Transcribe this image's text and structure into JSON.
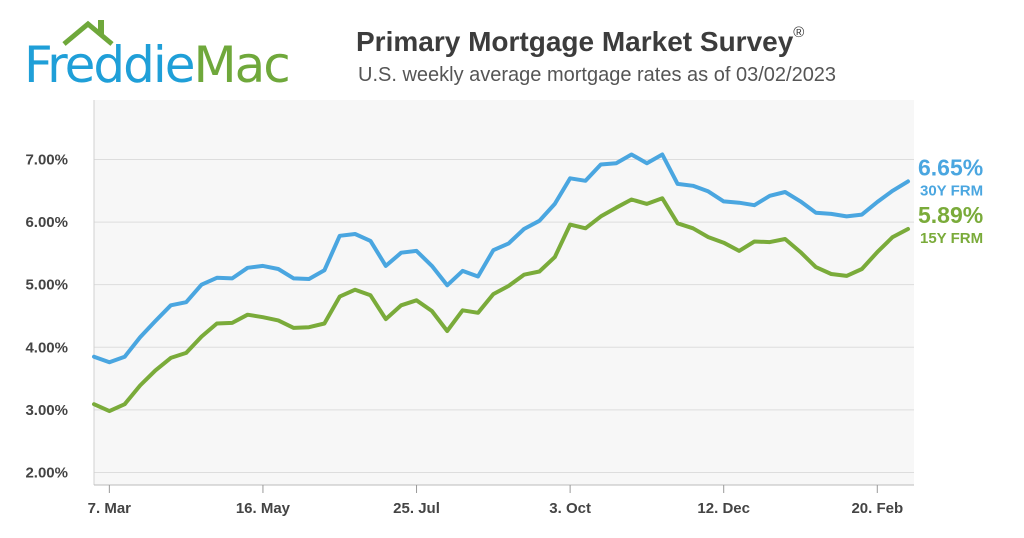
{
  "logo": {
    "text_part1": "Freddie",
    "text_part2": "Mac",
    "color_primary": "#1f9fd8",
    "color_secondary": "#6fa83b"
  },
  "header": {
    "title": "Primary Mortgage Market Survey",
    "title_mark": "®",
    "subtitle": "U.S. weekly average mortgage rates as of 03/02/2023"
  },
  "chart_data": {
    "type": "line",
    "title": "Primary Mortgage Market Survey®",
    "subtitle": "U.S. weekly average mortgage rates as of 03/02/2023",
    "x_tick_labels": [
      "7. Mar",
      "16. May",
      "25. Jul",
      "3. Oct",
      "12. Dec",
      "20. Feb"
    ],
    "x_tick_week_index": [
      1,
      11,
      21,
      31,
      41,
      51
    ],
    "y_tick_labels": [
      "2.00%",
      "3.00%",
      "4.00%",
      "5.00%",
      "6.00%",
      "7.00%"
    ],
    "ylim": [
      1.8,
      7.95
    ],
    "grid": "horizontal",
    "series": [
      {
        "name": "30Y FRM",
        "color": "#4aa6e0",
        "end_value_label": "6.65%",
        "values": [
          3.85,
          3.76,
          3.85,
          4.16,
          4.42,
          4.67,
          4.72,
          5.0,
          5.11,
          5.1,
          5.27,
          5.3,
          5.25,
          5.1,
          5.09,
          5.23,
          5.78,
          5.81,
          5.7,
          5.3,
          5.51,
          5.54,
          5.3,
          4.99,
          5.22,
          5.13,
          5.55,
          5.66,
          5.89,
          6.02,
          6.29,
          6.7,
          6.66,
          6.92,
          6.94,
          7.08,
          6.94,
          7.08,
          6.61,
          6.58,
          6.49,
          6.33,
          6.31,
          6.27,
          6.42,
          6.48,
          6.33,
          6.15,
          6.13,
          6.09,
          6.12,
          6.32,
          6.5,
          6.65
        ]
      },
      {
        "name": "15Y FRM",
        "color": "#7aab3a",
        "end_value_label": "5.89%",
        "values": [
          3.09,
          2.98,
          3.09,
          3.39,
          3.63,
          3.83,
          3.91,
          4.17,
          4.38,
          4.39,
          4.52,
          4.48,
          4.43,
          4.31,
          4.32,
          4.38,
          4.81,
          4.92,
          4.83,
          4.45,
          4.67,
          4.75,
          4.58,
          4.26,
          4.59,
          4.55,
          4.85,
          4.98,
          5.16,
          5.21,
          5.44,
          5.96,
          5.9,
          6.09,
          6.23,
          6.36,
          6.29,
          6.38,
          5.98,
          5.9,
          5.76,
          5.67,
          5.54,
          5.69,
          5.68,
          5.73,
          5.52,
          5.28,
          5.17,
          5.14,
          5.25,
          5.52,
          5.76,
          5.89
        ]
      }
    ]
  }
}
